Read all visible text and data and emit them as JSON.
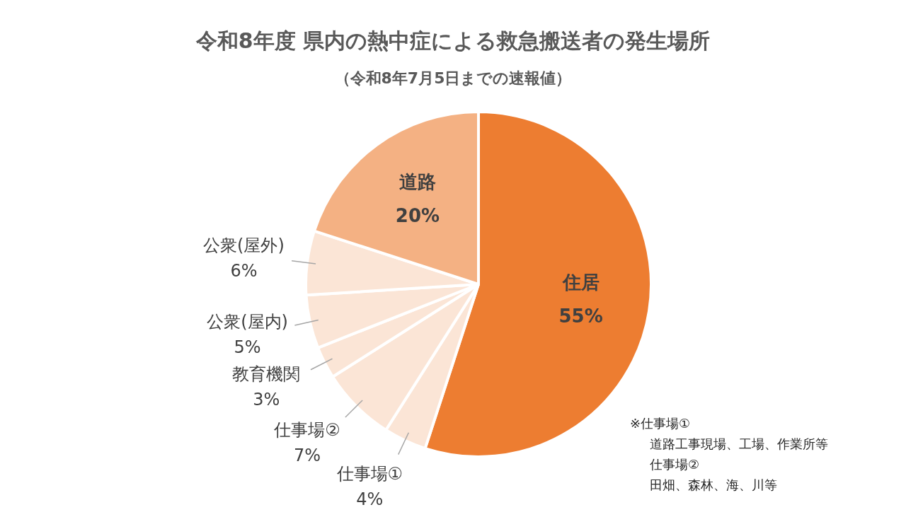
{
  "chart_data": {
    "type": "pie",
    "title": "令和8年度 県内の熱中症による救急搬送者の発生場所",
    "subtitle": "（令和8年7月5日までの速報値）",
    "categories": [
      "住居",
      "仕事場①",
      "仕事場②",
      "教育機関",
      "公衆(屋内)",
      "公衆(屋外)",
      "道路"
    ],
    "values": [
      55,
      4,
      7,
      3,
      5,
      6,
      20
    ],
    "value_labels": [
      "55%",
      "4%",
      "7%",
      "3%",
      "5%",
      "6%",
      "20%"
    ],
    "colors": [
      "#ed7d31",
      "#fbe5d6",
      "#fbe5d6",
      "#fbe5d6",
      "#fbe5d6",
      "#fbe5d6",
      "#f4b183"
    ],
    "legend": false,
    "annotations": [
      "※仕事場①",
      "道路工事現場、工場、作業所等",
      "仕事場②",
      "田畑、森林、海、川等"
    ]
  }
}
